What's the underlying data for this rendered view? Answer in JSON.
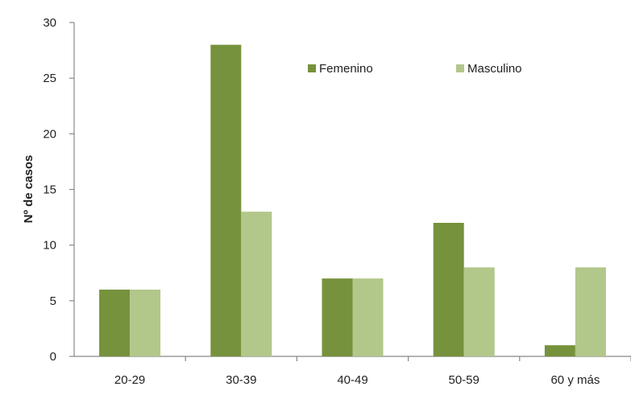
{
  "chart_data": {
    "type": "bar",
    "title": "",
    "xlabel": "",
    "ylabel": "Nº de casos",
    "categories": [
      "20-29",
      "30-39",
      "40-49",
      "50-59",
      "60 y más"
    ],
    "series": [
      {
        "name": "Femenino",
        "color": "#76923c",
        "values": [
          6,
          28,
          7,
          12,
          1
        ]
      },
      {
        "name": "Masculino",
        "color": "#b2c78a",
        "values": [
          6,
          13,
          7,
          8,
          8
        ]
      }
    ],
    "ylim": [
      0,
      30
    ],
    "yticks": [
      0,
      5,
      10,
      15,
      20,
      25,
      30
    ],
    "grid": false,
    "legend_position": "top-right"
  }
}
